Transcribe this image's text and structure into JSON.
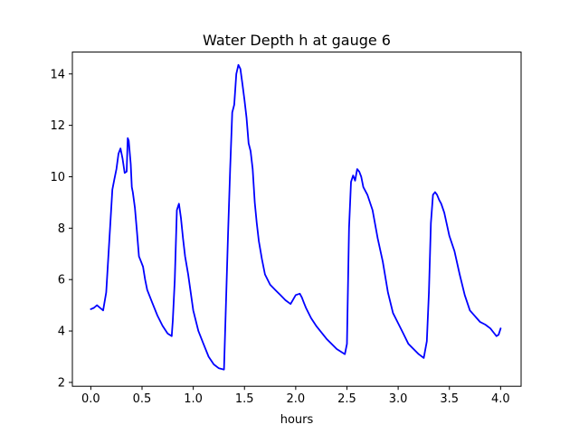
{
  "chart_data": {
    "type": "line",
    "title": "Water Depth h at gauge 6",
    "xlabel": "hours",
    "ylabel": "",
    "xlim": [
      -0.18,
      4.2
    ],
    "ylim": [
      1.85,
      14.85
    ],
    "xticks": [
      0.0,
      0.5,
      1.0,
      1.5,
      2.0,
      2.5,
      3.0,
      3.5,
      4.0
    ],
    "xtick_labels": [
      "0.0",
      "0.5",
      "1.0",
      "1.5",
      "2.0",
      "2.5",
      "3.0",
      "3.5",
      "4.0"
    ],
    "yticks": [
      2,
      4,
      6,
      8,
      10,
      12,
      14
    ],
    "ytick_labels": [
      "2",
      "4",
      "6",
      "8",
      "10",
      "12",
      "14"
    ],
    "grid": false,
    "line_color": "#0000ff",
    "series": [
      {
        "x": [
          0.0,
          0.03,
          0.06,
          0.09,
          0.12,
          0.15,
          0.18,
          0.21,
          0.23,
          0.25,
          0.27,
          0.29,
          0.31,
          0.33,
          0.35,
          0.36,
          0.37,
          0.39,
          0.4,
          0.41,
          0.43,
          0.45,
          0.47,
          0.49,
          0.51,
          0.53,
          0.55,
          0.6,
          0.65,
          0.7,
          0.75,
          0.79,
          0.8,
          0.82,
          0.84,
          0.86,
          0.88,
          0.9,
          0.92,
          0.95,
          1.0,
          1.05,
          1.1,
          1.15,
          1.2,
          1.25,
          1.3,
          1.34,
          1.36,
          1.38,
          1.4,
          1.42,
          1.44,
          1.46,
          1.48,
          1.5,
          1.52,
          1.54,
          1.56,
          1.58,
          1.6,
          1.62,
          1.64,
          1.67,
          1.7,
          1.75,
          1.8,
          1.85,
          1.9,
          1.95,
          2.0,
          2.04,
          2.06,
          2.08,
          2.1,
          2.15,
          2.2,
          2.3,
          2.4,
          2.48,
          2.5,
          2.52,
          2.54,
          2.56,
          2.58,
          2.6,
          2.62,
          2.64,
          2.66,
          2.7,
          2.75,
          2.8,
          2.85,
          2.9,
          2.95,
          3.0,
          3.05,
          3.1,
          3.15,
          3.2,
          3.25,
          3.28,
          3.3,
          3.32,
          3.34,
          3.36,
          3.38,
          3.4,
          3.42,
          3.45,
          3.5,
          3.55,
          3.6,
          3.65,
          3.7,
          3.8,
          3.85,
          3.9,
          3.93,
          3.96,
          3.98,
          4.0
        ],
        "y": [
          4.85,
          4.9,
          5.0,
          4.9,
          4.8,
          5.5,
          7.5,
          9.5,
          9.9,
          10.3,
          10.9,
          11.1,
          10.7,
          10.15,
          10.2,
          11.5,
          11.4,
          10.5,
          9.6,
          9.4,
          8.8,
          7.9,
          6.9,
          6.7,
          6.5,
          6.0,
          5.6,
          5.1,
          4.6,
          4.2,
          3.9,
          3.8,
          4.4,
          6.0,
          8.7,
          8.95,
          8.4,
          7.6,
          6.9,
          6.2,
          4.8,
          4.0,
          3.5,
          3.0,
          2.7,
          2.55,
          2.5,
          7.8,
          10.3,
          12.5,
          12.8,
          14.0,
          14.35,
          14.2,
          13.6,
          13.0,
          12.3,
          11.3,
          11.0,
          10.3,
          9.0,
          8.2,
          7.5,
          6.8,
          6.2,
          5.8,
          5.6,
          5.4,
          5.2,
          5.05,
          5.4,
          5.45,
          5.3,
          5.1,
          4.9,
          4.5,
          4.2,
          3.7,
          3.3,
          3.1,
          3.5,
          8.0,
          9.8,
          10.05,
          9.85,
          10.3,
          10.2,
          10.0,
          9.6,
          9.3,
          8.7,
          7.6,
          6.7,
          5.5,
          4.7,
          4.3,
          3.9,
          3.5,
          3.3,
          3.1,
          2.95,
          3.6,
          5.5,
          8.2,
          9.3,
          9.4,
          9.3,
          9.1,
          8.95,
          8.6,
          7.7,
          7.1,
          6.2,
          5.4,
          4.8,
          4.35,
          4.25,
          4.1,
          3.95,
          3.8,
          3.85,
          4.1
        ]
      }
    ]
  }
}
